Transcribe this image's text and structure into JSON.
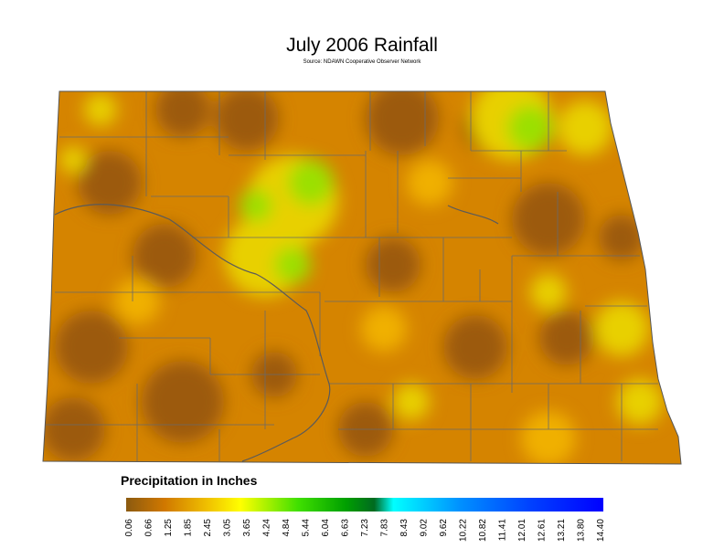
{
  "header": {
    "title": "July 2006 Rainfall",
    "source": "Source: NDAWN Cooperative Observer Network"
  },
  "legend": {
    "title": "Precipitation in Inches",
    "labels": [
      "0.06",
      "0.66",
      "1.25",
      "1.85",
      "2.45",
      "3.05",
      "3.65",
      "4.24",
      "4.84",
      "5.44",
      "6.04",
      "6.63",
      "7.23",
      "7.83",
      "8.43",
      "9.02",
      "9.62",
      "10.22",
      "10.82",
      "11.41",
      "12.01",
      "12.61",
      "13.21",
      "13.80",
      "14.40"
    ]
  }
}
